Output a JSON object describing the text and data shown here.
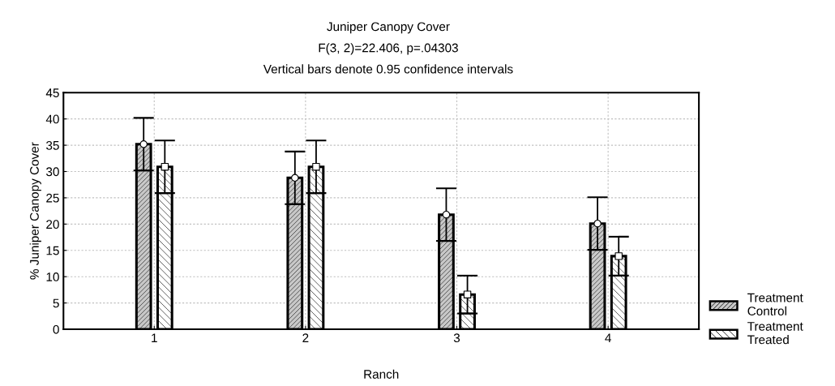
{
  "chart_data": {
    "type": "bar",
    "title": "Juniper Canopy Cover",
    "subtitle": "F(3, 2)=22.406, p=.04303",
    "annotations": [
      "Vertical bars denote 0.95 confidence intervals"
    ],
    "xlabel": "Ranch",
    "ylabel": "% Juniper Canopy Cover",
    "categories": [
      "1",
      "2",
      "3",
      "4"
    ],
    "series": [
      {
        "name": "Treatment\nControl",
        "color": "#c8c8c8",
        "values": [
          35.2,
          28.8,
          21.8,
          20.1
        ],
        "errors": [
          5.0,
          5.0,
          5.0,
          5.0
        ]
      },
      {
        "name": "Treatment\nTreated",
        "color": "#ffffff",
        "values": [
          30.9,
          30.9,
          6.6,
          13.9
        ],
        "errors": [
          5.0,
          5.0,
          3.6,
          3.7
        ]
      },
      {
        "type": "scatter",
        "marker": "circle",
        "color": "#ffffff",
        "x": [
          "1",
          "2",
          "3",
          "4"
        ],
        "values": [
          35.2,
          28.8,
          21.8,
          20.1
        ]
      },
      {
        "type": "scatter",
        "marker": "square",
        "color": "#ffffff",
        "x": [
          "1",
          "2",
          "3",
          "4"
        ],
        "values": [
          30.9,
          30.9,
          6.6,
          13.9
        ]
      }
    ],
    "ylim": [
      0,
      45
    ],
    "yticks": [
      0,
      5,
      10,
      15,
      20,
      25,
      30,
      35,
      40,
      45
    ],
    "grid": true,
    "legend": "bottom right"
  }
}
